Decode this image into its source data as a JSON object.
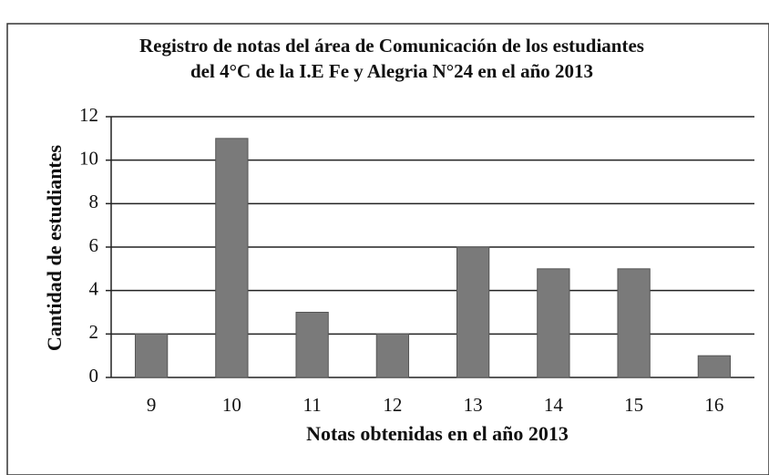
{
  "chart_data": {
    "type": "bar",
    "title": [
      "Registro de notas del área de Comunicación de los  estudiantes",
      "del  4°C de la I.E Fe y Alegria N°24 en el año 2013"
    ],
    "x_label": "Notas obtenidas en el año 2013",
    "y_label": "Cantidad de estudiantes",
    "categories": [
      "9",
      "10",
      "11",
      "12",
      "13",
      "14",
      "15",
      "16"
    ],
    "values": [
      2,
      11,
      3,
      2,
      6,
      5,
      5,
      1
    ],
    "color": "#7a7a7a",
    "ylim": [
      0,
      12
    ],
    "yticks": [
      0,
      2,
      4,
      6,
      8,
      10,
      12
    ],
    "grid": true
  }
}
